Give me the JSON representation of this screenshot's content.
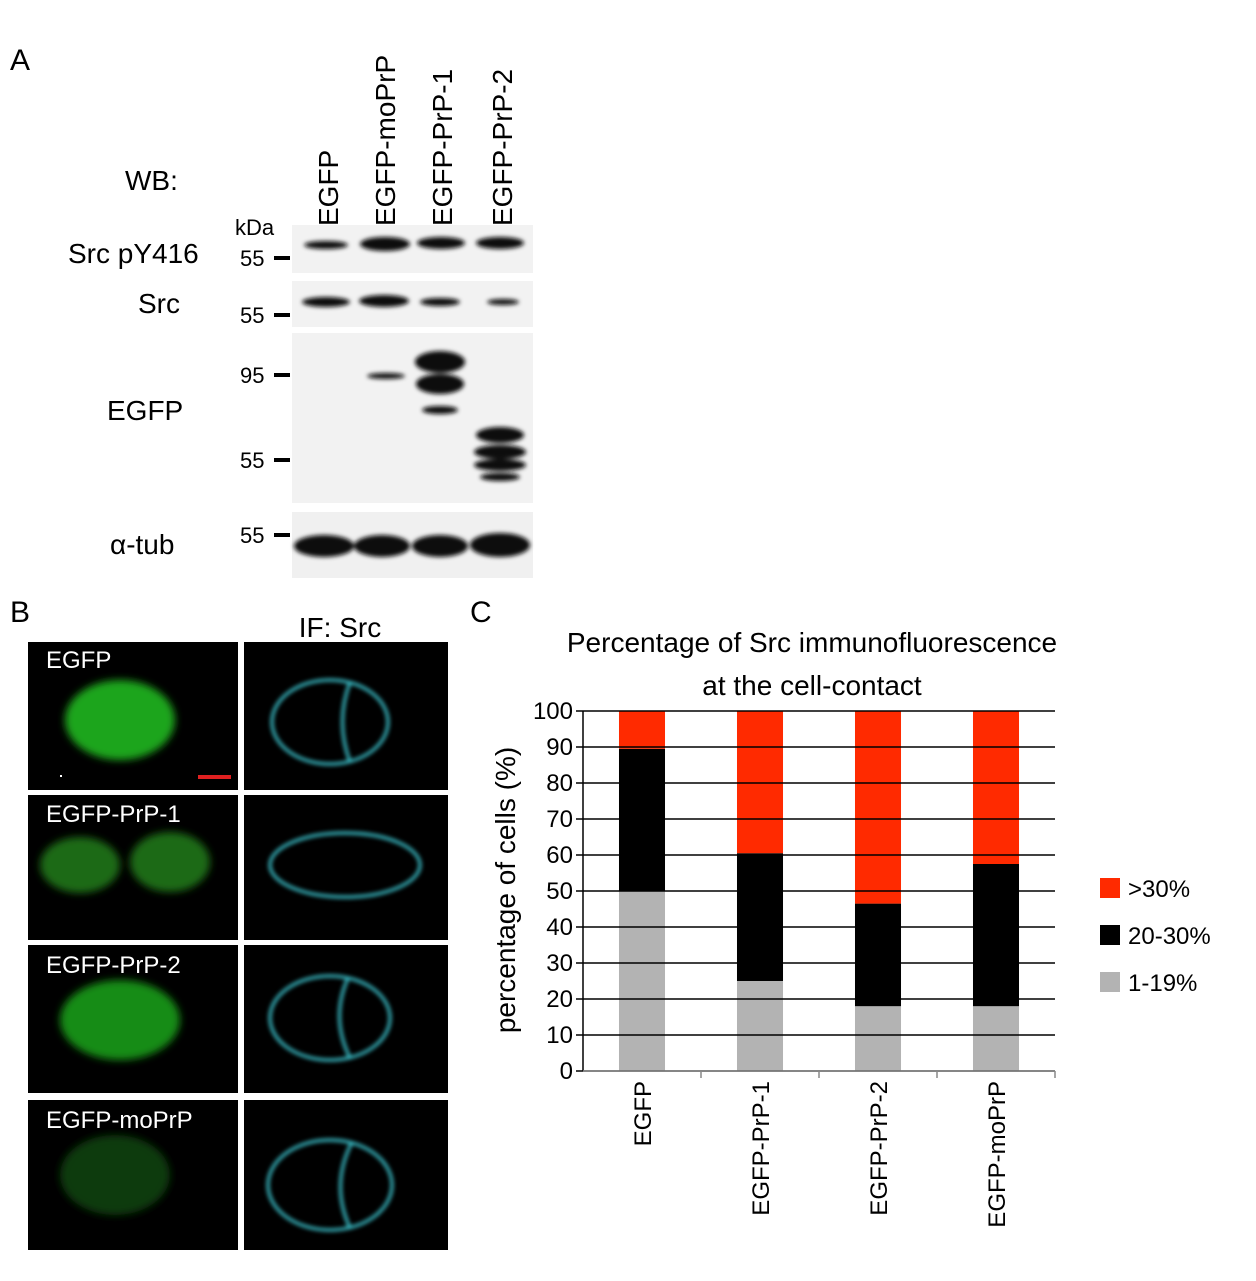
{
  "panel_a": {
    "label": "A",
    "wb_label": "WB:",
    "kda": "kDa",
    "lanes": [
      "EGFP",
      "EGFP-moPrP",
      "EGFP-PrP-1",
      "EGFP-PrP-2"
    ],
    "rows": [
      {
        "name": "Src pY416",
        "markers": [
          55
        ]
      },
      {
        "name": "Src",
        "markers": [
          55
        ]
      },
      {
        "name": "EGFP",
        "markers": [
          95,
          55
        ]
      },
      {
        "name": "α-tub",
        "markers": [
          55
        ]
      }
    ]
  },
  "panel_b": {
    "label": "B",
    "column_title": "IF: Src",
    "rows": [
      "EGFP",
      "EGFP-PrP-1",
      "EGFP-PrP-2",
      "EGFP-moPrP"
    ]
  },
  "chart_data": {
    "type": "stacked_bar",
    "panel_label": "C",
    "title": "Percentage of Src immunofluorescence",
    "subtitle": "at the cell-contact",
    "y_label": "percentage of cells (%)",
    "categories": [
      "EGFP",
      "EGFP-PrP-1",
      "EGFP-PrP-2",
      "EGFP-moPrP"
    ],
    "series": [
      {
        "name": "1-19%",
        "color": "#b3b3b3",
        "values": [
          50,
          25,
          18,
          18
        ]
      },
      {
        "name": "20-30%",
        "color": "#000000",
        "values": [
          39.5,
          35.5,
          28.5,
          39.5
        ]
      },
      {
        "name": ">30%",
        "color": "#ff2a00",
        "values": [
          10.5,
          39.5,
          53.5,
          42.5
        ]
      }
    ],
    "ylim": [
      0,
      100
    ],
    "yticks": [
      0,
      10,
      20,
      30,
      40,
      50,
      60,
      70,
      80,
      90,
      100
    ],
    "grid": true,
    "legend": "right"
  }
}
